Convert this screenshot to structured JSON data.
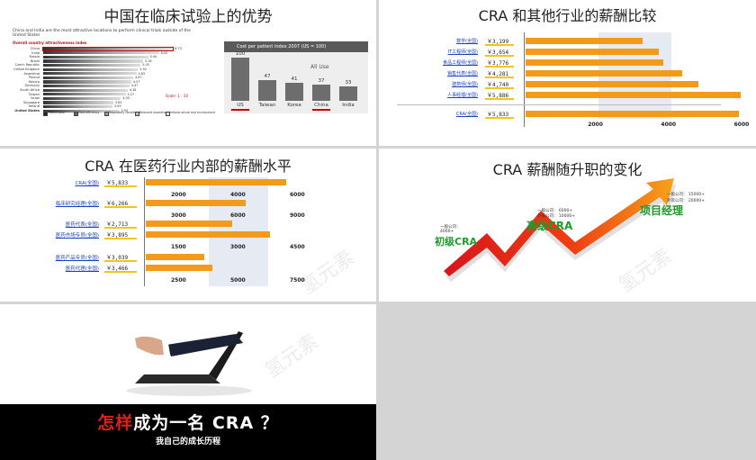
{
  "slide1": {
    "title": "中国在临床试验上的优势",
    "left_chart": {
      "caption": "China and India are the most attractive locations to perform clinical trials outside of the United States",
      "subtitle": "Overall country attractiveness index",
      "countries": [
        "China",
        "India",
        "Russia",
        "Brazil",
        "Czech Republic",
        "United Kingdom",
        "Argentina",
        "Poland",
        "Mexico",
        "Germany",
        "South Africa",
        "Taiwan",
        "Israel",
        "Singapore",
        "Ireland",
        "United States"
      ],
      "values": [
        6.73,
        6.0,
        5.44,
        5.18,
        5.05,
        4.92,
        4.83,
        4.67,
        4.57,
        4.47,
        4.38,
        4.27,
        4.03,
        3.63,
        3.59,
        3.94
      ],
      "scale_note": "Scale: 1 - 10",
      "legend": [
        "Patient pool",
        "Cost efficiency",
        "Regulatory conditions",
        "Relevant expertise",
        "Infrastructure and environment"
      ]
    },
    "right_chart": {
      "title": "Cost per patient index 2007 (US = 100)",
      "note": "All Use",
      "categories": [
        "US",
        "Taiwan",
        "Korea",
        "China",
        "India"
      ],
      "values": [
        100,
        47,
        41,
        37,
        33
      ]
    }
  },
  "slide2": {
    "title": "CRA 和其他行业的薪酬比较",
    "chart_data": {
      "type": "bar",
      "categories": [
        "数学(全国)",
        "IT工程师(全国)",
        "食品工程师(全国)",
        "销售代表(全国)",
        "建筑师(全国)",
        "人事经理(全国)",
        "CRA(全国)"
      ],
      "value_labels": [
        "￥3,199",
        "￥3,654",
        "￥3,776",
        "￥4,281",
        "￥4,740",
        "￥5,886",
        "￥5,833"
      ],
      "values": [
        3199,
        3654,
        3776,
        4281,
        4740,
        5886,
        5833
      ],
      "ticks": [
        "2000",
        "4000",
        "6000"
      ]
    }
  },
  "slide3": {
    "title": "CRA 在医药行业内部的薪酬水平",
    "groups": [
      {
        "items": [
          {
            "label": "CRA(全国)",
            "value_label": "￥5,833",
            "value": 5833
          }
        ],
        "ticks": [
          "2000",
          "4000",
          "6000"
        ]
      },
      {
        "items": [
          {
            "label": "临床研究经理(全国)",
            "value_label": "￥6,266",
            "value": 6266
          }
        ],
        "ticks": [
          "3000",
          "6000",
          "9000"
        ]
      },
      {
        "items": [
          {
            "label": "医药代表(全国)",
            "value_label": "￥2,713",
            "value": 2713
          },
          {
            "label": "医药市场专员(全国)",
            "value_label": "￥3,895",
            "value": 3895
          }
        ],
        "ticks": [
          "1500",
          "3000",
          "4500"
        ]
      },
      {
        "items": [
          {
            "label": "医药产品专员(全国)",
            "value_label": "￥3,039",
            "value": 3039
          },
          {
            "label": "医药代理(全国)",
            "value_label": "￥3,466",
            "value": 3466
          }
        ],
        "ticks": [
          "2500",
          "5000",
          "7500"
        ]
      }
    ]
  },
  "slide4": {
    "title": "CRA 薪酬随升职的变化",
    "levels": [
      {
        "name": "初级CRA",
        "note1": "一般公司：",
        "note2": "4000+"
      },
      {
        "name": "高级CRA",
        "note1": "一般公司：  6000+",
        "note2": "外资公司：  10000+"
      },
      {
        "name": "项目经理",
        "note1": "一般公司：  15000+",
        "note2": "外资公司：  20000+"
      }
    ]
  },
  "slide5": {
    "headline_red": "怎样",
    "headline_white": "成为一名 CRA ？",
    "subtitle": "我自己的成长历程"
  },
  "colors": {
    "bar": "#f39a1b",
    "underline": "#f3c515",
    "link": "#1a3fbf",
    "red": "#e0201b",
    "green": "#1f9a2b"
  }
}
